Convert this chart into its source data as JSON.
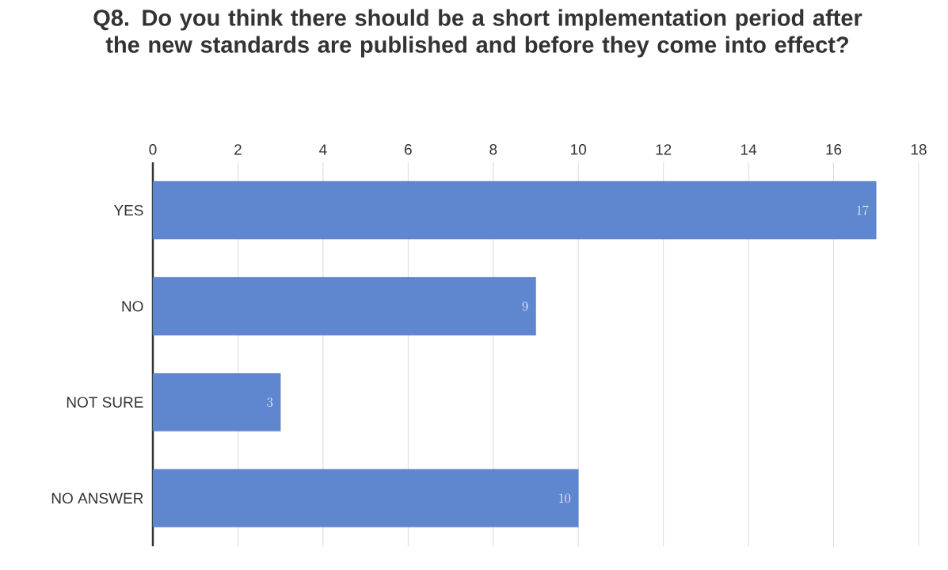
{
  "chart_data": {
    "type": "bar",
    "orientation": "horizontal",
    "title": "Q8. Do you think there should be a short implementation period after the new standards are published and before they come into effect?",
    "categories": [
      "YES",
      "NO",
      "NOT SURE",
      "NO ANSWER"
    ],
    "values": [
      17,
      9,
      3,
      10
    ],
    "color": "#5f87cf",
    "xlim": [
      0,
      18
    ],
    "xticks": [
      0,
      2,
      4,
      6,
      8,
      10,
      12,
      14,
      16,
      18
    ],
    "grid": "x",
    "data_labels": true
  }
}
